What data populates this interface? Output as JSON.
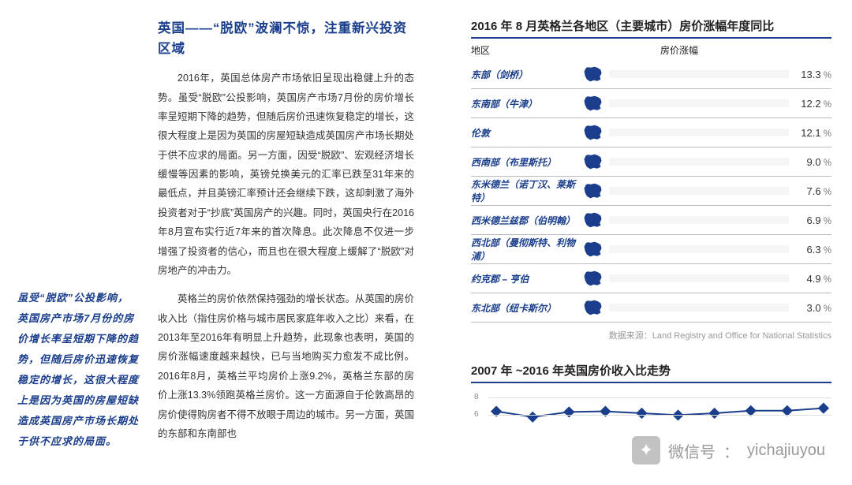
{
  "callout": "虽受“脱欧”公投影响，英国房产市场7月份的房价增长率呈短期下降的趋势，但随后房价迅速恢复稳定的增长，这很大程度上是因为英国的房屋短缺造成英国房产市场长期处于供不应求的局面。",
  "article": {
    "heading": "英国——“脱欧”波澜不惊，注重新兴投资区域",
    "p1": "2016年，英国总体房产市场依旧呈现出稳健上升的态势。虽受“脱欧”公投影响，英国房产市场7月份的房价增长率呈短期下降的趋势，但随后房价迅速恢复稳定的增长，这很大程度上是因为英国的房屋短缺造成英国房产市场长期处于供不应求的局面。另一方面，因受“脱欧”、宏观经济增长缓慢等因素的影响，英镑兑换美元的汇率已跌至31年来的最低点，并且英镑汇率预计还会继续下跌，这却刺激了海外投资者对于“抄底”英国房产的兴趣。同时，英国央行在2016年8月宣布实行近7年来的首次降息。此次降息不仅进一步增强了投资者的信心，而且也在很大程度上缓解了“脱欧”对房地产的冲击力。",
    "p2": "英格兰的房价依然保持强劲的增长状态。从英国的房价收入比（指住房价格与城市居民家庭年收入之比）来看，在2013年至2016年有明显上升趋势，此现象也表明，英国的房价涨幅速度越来越快，已与当地购买力愈发不成比例。2016年8月，英格兰平均房价上涨9.2%，英格兰东部的房价上涨13.3%领跑英格兰房价。这一方面源自于伦敦高昂的房价使得购房者不得不放眼于周边的城市。另一方面，英国的东部和东南部也"
  },
  "chart_bar": {
    "type": "bar",
    "title": "2016 年 8 月英格兰各地区（主要城市）房价涨幅年度同比",
    "header_region": "地区",
    "header_value": "房价涨幅",
    "max_pct": 14,
    "bar_pattern_color": "#1a3e8c",
    "rows": [
      {
        "region": "东部（剑桥）",
        "value": 13.3
      },
      {
        "region": "东南部（牛津）",
        "value": 12.2
      },
      {
        "region": "伦敦",
        "value": 12.1
      },
      {
        "region": "西南部（布里斯托）",
        "value": 9.0
      },
      {
        "region": "东米德兰（诺丁汉、莱斯特）",
        "value": 7.6
      },
      {
        "region": "西米德兰兹郡（伯明翰）",
        "value": 6.9
      },
      {
        "region": "西北部（曼彻斯特、利物浦）",
        "value": 6.3
      },
      {
        "region": "约克郡 – 亨伯",
        "value": 4.9
      },
      {
        "region": "东北部（纽卡斯尔）",
        "value": 3.0
      }
    ],
    "source": "数据来源：Land Registry and Office for National Statistics"
  },
  "chart_line": {
    "type": "line",
    "title": "2007 年 ~2016 年英国房价收入比走势",
    "y_labels": [
      "8",
      "6"
    ],
    "ymin": 4,
    "ymax": 9,
    "color": "#1a3e8c",
    "values": [
      6.3,
      5.4,
      6.2,
      6.3,
      6.0,
      5.7,
      6.0,
      6.4,
      6.4,
      6.8
    ]
  },
  "watermark": {
    "label": "微信号",
    "handle": "yichajiuyou"
  }
}
